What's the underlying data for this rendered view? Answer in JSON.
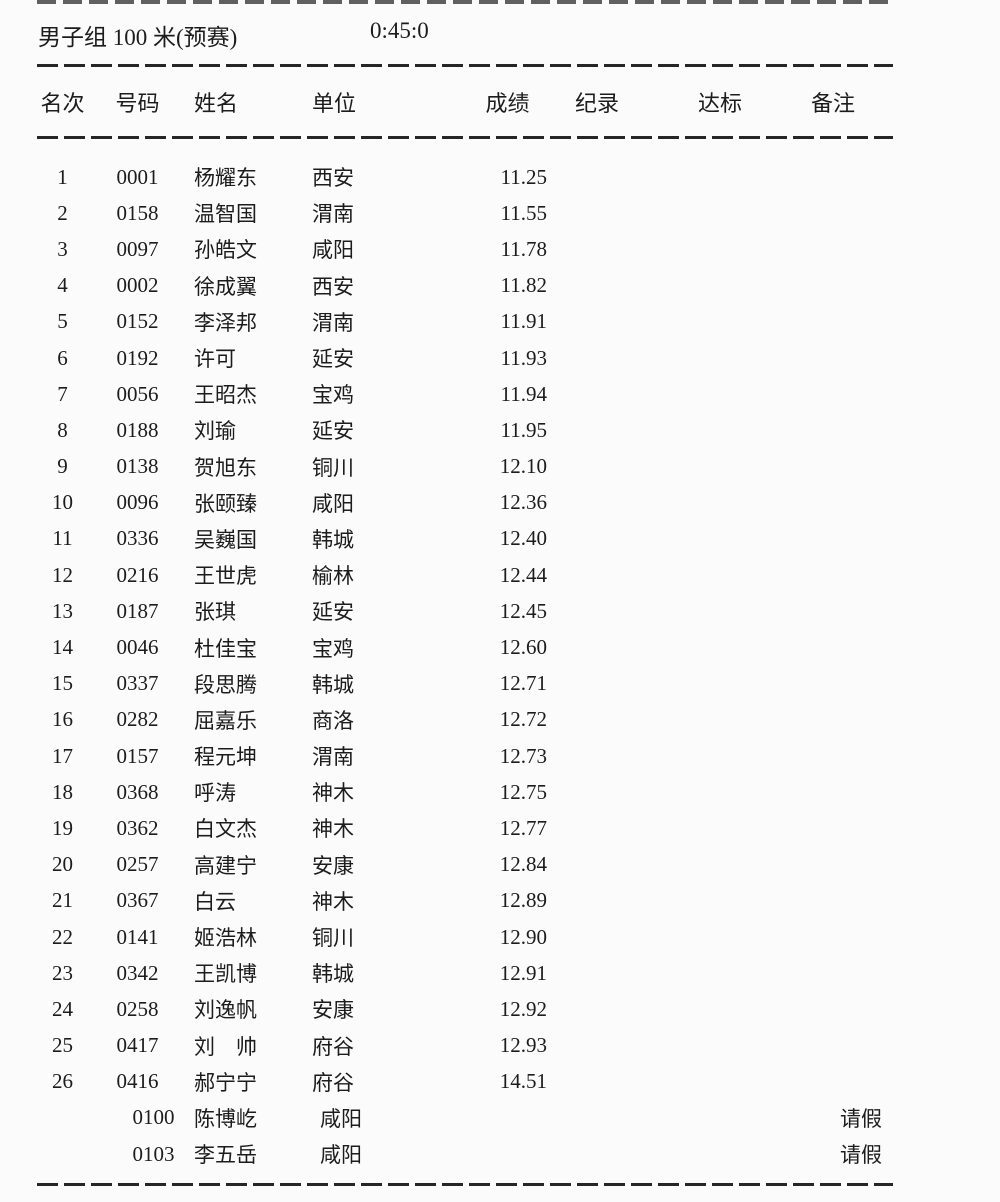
{
  "header": {
    "event_title": "男子组 100 米(预赛)",
    "time": "0:45:0"
  },
  "table": {
    "headers": [
      "名次",
      "号码",
      "姓名",
      "单位",
      "成绩",
      "纪录",
      "达标",
      "备注"
    ],
    "rows": [
      {
        "rank": "1",
        "number": "0001",
        "name": "杨耀东",
        "unit": "西安",
        "result": "11.25",
        "record": "",
        "standard": "",
        "remark": "",
        "absent": false
      },
      {
        "rank": "2",
        "number": "0158",
        "name": "温智国",
        "unit": "渭南",
        "result": "11.55",
        "record": "",
        "standard": "",
        "remark": "",
        "absent": false
      },
      {
        "rank": "3",
        "number": "0097",
        "name": "孙皓文",
        "unit": "咸阳",
        "result": "11.78",
        "record": "",
        "standard": "",
        "remark": "",
        "absent": false
      },
      {
        "rank": "4",
        "number": "0002",
        "name": "徐成翼",
        "unit": "西安",
        "result": "11.82",
        "record": "",
        "standard": "",
        "remark": "",
        "absent": false
      },
      {
        "rank": "5",
        "number": "0152",
        "name": "李泽邦",
        "unit": "渭南",
        "result": "11.91",
        "record": "",
        "standard": "",
        "remark": "",
        "absent": false
      },
      {
        "rank": "6",
        "number": "0192",
        "name": "许可",
        "unit": "延安",
        "result": "11.93",
        "record": "",
        "standard": "",
        "remark": "",
        "absent": false
      },
      {
        "rank": "7",
        "number": "0056",
        "name": "王昭杰",
        "unit": "宝鸡",
        "result": "11.94",
        "record": "",
        "standard": "",
        "remark": "",
        "absent": false
      },
      {
        "rank": "8",
        "number": "0188",
        "name": "刘瑜",
        "unit": "延安",
        "result": "11.95",
        "record": "",
        "standard": "",
        "remark": "",
        "absent": false
      },
      {
        "rank": "9",
        "number": "0138",
        "name": "贺旭东",
        "unit": "铜川",
        "result": "12.10",
        "record": "",
        "standard": "",
        "remark": "",
        "absent": false
      },
      {
        "rank": "10",
        "number": "0096",
        "name": "张颐臻",
        "unit": "咸阳",
        "result": "12.36",
        "record": "",
        "standard": "",
        "remark": "",
        "absent": false
      },
      {
        "rank": "11",
        "number": "0336",
        "name": "吴巍国",
        "unit": "韩城",
        "result": "12.40",
        "record": "",
        "standard": "",
        "remark": "",
        "absent": false
      },
      {
        "rank": "12",
        "number": "0216",
        "name": "王世虎",
        "unit": "榆林",
        "result": "12.44",
        "record": "",
        "standard": "",
        "remark": "",
        "absent": false
      },
      {
        "rank": "13",
        "number": "0187",
        "name": "张琪",
        "unit": "延安",
        "result": "12.45",
        "record": "",
        "standard": "",
        "remark": "",
        "absent": false
      },
      {
        "rank": "14",
        "number": "0046",
        "name": "杜佳宝",
        "unit": "宝鸡",
        "result": "12.60",
        "record": "",
        "standard": "",
        "remark": "",
        "absent": false
      },
      {
        "rank": "15",
        "number": "0337",
        "name": "段思腾",
        "unit": "韩城",
        "result": "12.71",
        "record": "",
        "standard": "",
        "remark": "",
        "absent": false
      },
      {
        "rank": "16",
        "number": "0282",
        "name": "屈嘉乐",
        "unit": "商洛",
        "result": "12.72",
        "record": "",
        "standard": "",
        "remark": "",
        "absent": false
      },
      {
        "rank": "17",
        "number": "0157",
        "name": "程元坤",
        "unit": "渭南",
        "result": "12.73",
        "record": "",
        "standard": "",
        "remark": "",
        "absent": false
      },
      {
        "rank": "18",
        "number": "0368",
        "name": "呼涛",
        "unit": "神木",
        "result": "12.75",
        "record": "",
        "standard": "",
        "remark": "",
        "absent": false
      },
      {
        "rank": "19",
        "number": "0362",
        "name": "白文杰",
        "unit": "神木",
        "result": "12.77",
        "record": "",
        "standard": "",
        "remark": "",
        "absent": false
      },
      {
        "rank": "20",
        "number": "0257",
        "name": "高建宁",
        "unit": "安康",
        "result": "12.84",
        "record": "",
        "standard": "",
        "remark": "",
        "absent": false
      },
      {
        "rank": "21",
        "number": "0367",
        "name": "白云",
        "unit": "神木",
        "result": "12.89",
        "record": "",
        "standard": "",
        "remark": "",
        "absent": false
      },
      {
        "rank": "22",
        "number": "0141",
        "name": "姬浩林",
        "unit": "铜川",
        "result": "12.90",
        "record": "",
        "standard": "",
        "remark": "",
        "absent": false
      },
      {
        "rank": "23",
        "number": "0342",
        "name": "王凯博",
        "unit": "韩城",
        "result": "12.91",
        "record": "",
        "standard": "",
        "remark": "",
        "absent": false
      },
      {
        "rank": "24",
        "number": "0258",
        "name": "刘逸帆",
        "unit": "安康",
        "result": "12.92",
        "record": "",
        "standard": "",
        "remark": "",
        "absent": false
      },
      {
        "rank": "25",
        "number": "0417",
        "name": "刘　帅",
        "unit": "府谷",
        "result": "12.93",
        "record": "",
        "standard": "",
        "remark": "",
        "absent": false
      },
      {
        "rank": "26",
        "number": "0416",
        "name": "郝宁宁",
        "unit": "府谷",
        "result": "14.51",
        "record": "",
        "standard": "",
        "remark": "",
        "absent": false
      },
      {
        "rank": "",
        "number": "0100",
        "name": "陈博屹",
        "unit": "咸阳",
        "result": "",
        "record": "",
        "standard": "",
        "remark": "请假",
        "absent": true
      },
      {
        "rank": "",
        "number": "0103",
        "name": "李五岳",
        "unit": "咸阳",
        "result": "",
        "record": "",
        "standard": "",
        "remark": "请假",
        "absent": true
      }
    ]
  },
  "colors": {
    "background": "#fbfbfb",
    "text": "#1c1c1c",
    "divider": "#262626"
  }
}
